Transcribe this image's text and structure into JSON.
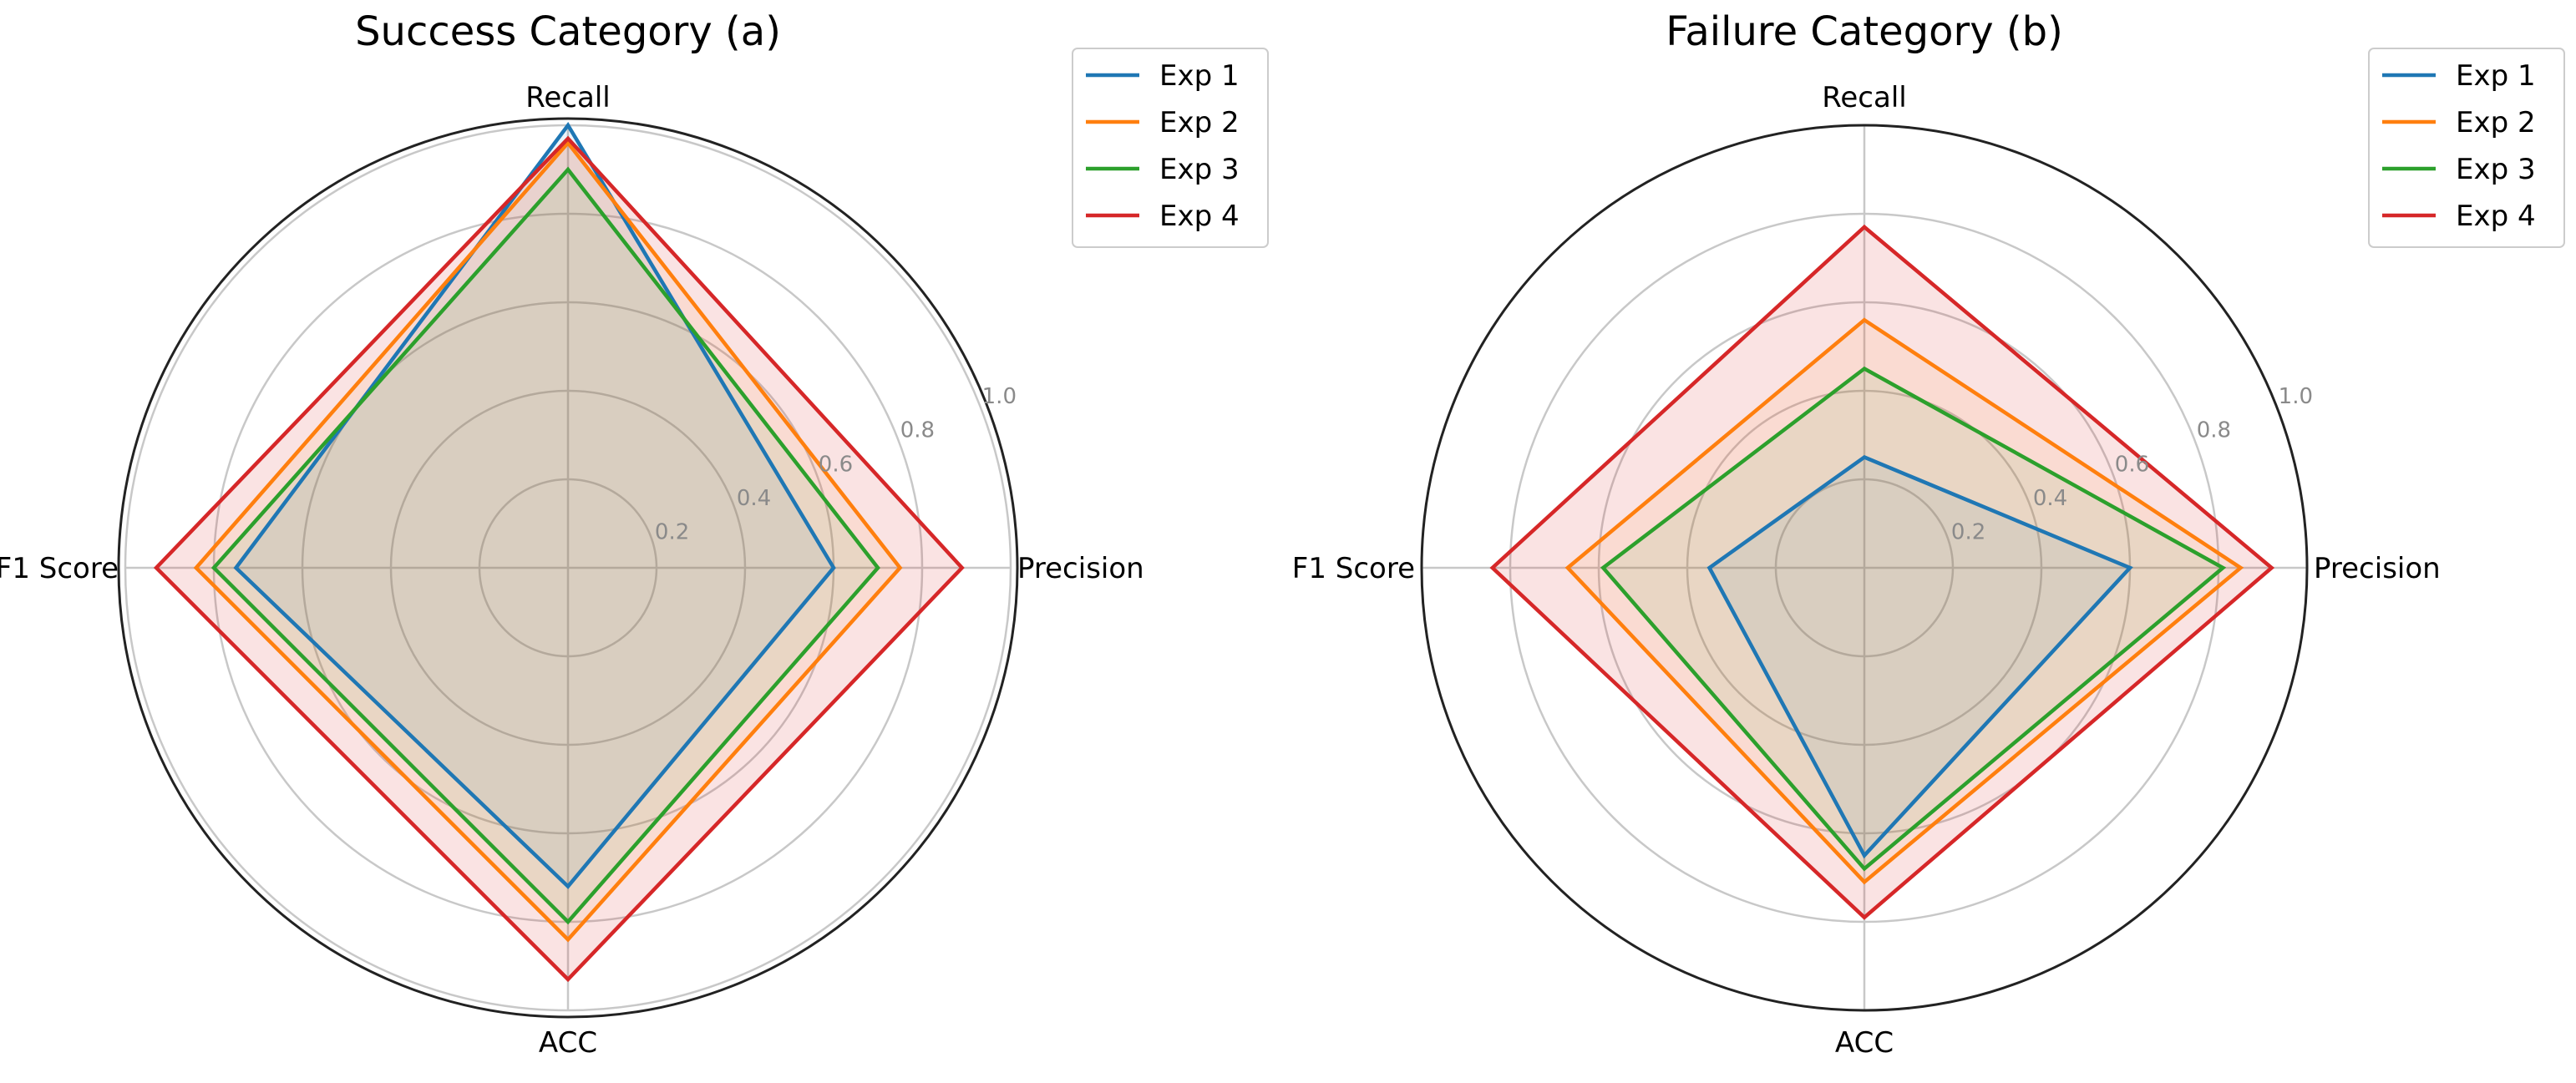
{
  "chart_data": [
    {
      "type": "radar",
      "title": "Success Category (a)",
      "axes": [
        "Recall",
        "Precision",
        "ACC",
        "F1 Score"
      ],
      "rlim": [
        0,
        1.0
      ],
      "rticks": [
        0.2,
        0.4,
        0.6,
        0.8,
        1.0
      ],
      "rtick_labels": [
        "0.2",
        "0.4",
        "0.6",
        "0.8",
        "1.0"
      ],
      "grid": true,
      "fill_series": "Exp 4",
      "legend": "top-right",
      "series": [
        {
          "name": "Exp 1",
          "color": "#1f77b4",
          "values": [
            1.0,
            0.6,
            0.72,
            0.75
          ]
        },
        {
          "name": "Exp 2",
          "color": "#ff7f0e",
          "values": [
            0.96,
            0.75,
            0.84,
            0.84
          ]
        },
        {
          "name": "Exp 3",
          "color": "#2ca02c",
          "values": [
            0.9,
            0.7,
            0.8,
            0.8
          ]
        },
        {
          "name": "Exp 4",
          "color": "#d62728",
          "values": [
            0.97,
            0.89,
            0.93,
            0.93
          ]
        }
      ]
    },
    {
      "type": "radar",
      "title": "Failure Category (b)",
      "axes": [
        "Recall",
        "Precision",
        "ACC",
        "F1 Score"
      ],
      "rlim": [
        0,
        1.0
      ],
      "rticks": [
        0.2,
        0.4,
        0.6,
        0.8,
        1.0
      ],
      "rtick_labels": [
        "0.2",
        "0.4",
        "0.6",
        "0.8",
        "1.0"
      ],
      "grid": true,
      "fill_series": "Exp 4",
      "legend": "top-right",
      "series": [
        {
          "name": "Exp 1",
          "color": "#1f77b4",
          "values": [
            0.25,
            0.6,
            0.65,
            0.35
          ]
        },
        {
          "name": "Exp 2",
          "color": "#ff7f0e",
          "values": [
            0.56,
            0.85,
            0.71,
            0.67
          ]
        },
        {
          "name": "Exp 3",
          "color": "#2ca02c",
          "values": [
            0.45,
            0.81,
            0.68,
            0.59
          ]
        },
        {
          "name": "Exp 4",
          "color": "#d62728",
          "values": [
            0.77,
            0.92,
            0.79,
            0.84
          ]
        }
      ]
    }
  ]
}
